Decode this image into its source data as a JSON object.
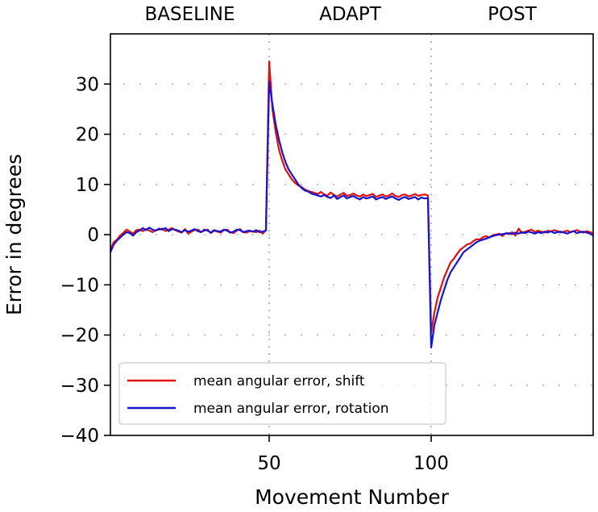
{
  "chart_data": {
    "type": "line",
    "title": "",
    "xlabel": "Movement Number",
    "ylabel": "Error in degrees",
    "xlim": [
      1,
      150
    ],
    "ylim": [
      -40,
      40
    ],
    "x_ticks": [
      50,
      100
    ],
    "y_ticks": [
      30,
      20,
      10,
      0,
      -10,
      -20,
      -30,
      -40
    ],
    "y_tick_labels": [
      "30",
      "20",
      "10",
      "0",
      "−10",
      "−20",
      "−30",
      "−40"
    ],
    "grid": true,
    "phase_boundaries": [
      50,
      100
    ],
    "phases": [
      {
        "label": "BASELINE",
        "start": 1,
        "end": 50
      },
      {
        "label": "ADAPT",
        "start": 50,
        "end": 100
      },
      {
        "label": "POST",
        "start": 100,
        "end": 150
      }
    ],
    "legend_position": "lower-left",
    "series": [
      {
        "name": "mean angular error, shift",
        "color": "#e01010",
        "x": [
          1,
          2,
          3,
          4,
          5,
          6,
          7,
          8,
          9,
          10,
          11,
          12,
          13,
          14,
          15,
          16,
          17,
          18,
          19,
          20,
          21,
          22,
          23,
          24,
          25,
          26,
          27,
          28,
          29,
          30,
          31,
          32,
          33,
          34,
          35,
          36,
          37,
          38,
          39,
          40,
          41,
          42,
          43,
          44,
          45,
          46,
          47,
          48,
          49,
          50,
          51,
          52,
          53,
          54,
          55,
          56,
          57,
          58,
          59,
          60,
          61,
          62,
          63,
          64,
          65,
          66,
          67,
          68,
          69,
          70,
          71,
          72,
          73,
          74,
          75,
          76,
          77,
          78,
          79,
          80,
          81,
          82,
          83,
          84,
          85,
          86,
          87,
          88,
          89,
          90,
          91,
          92,
          93,
          94,
          95,
          96,
          97,
          98,
          99,
          100,
          101,
          102,
          103,
          104,
          105,
          106,
          107,
          108,
          109,
          110,
          111,
          112,
          113,
          114,
          115,
          116,
          117,
          118,
          119,
          120,
          121,
          122,
          123,
          124,
          125,
          126,
          127,
          128,
          129,
          130,
          131,
          132,
          133,
          134,
          135,
          136,
          137,
          138,
          139,
          140,
          141,
          142,
          143,
          144,
          145,
          146,
          147,
          148,
          149,
          150
        ],
        "y": [
          -3.0,
          -1.5,
          -1.0,
          -0.2,
          0.4,
          1.0,
          0.6,
          0.2,
          0.9,
          1.0,
          0.7,
          1.1,
          0.8,
          0.5,
          0.9,
          1.0,
          1.2,
          0.7,
          1.0,
          1.3,
          0.9,
          0.6,
          0.4,
          1.1,
          0.2,
          0.6,
          0.9,
          1.0,
          0.5,
          0.8,
          1.0,
          0.3,
          0.8,
          0.6,
          0.4,
          0.9,
          1.0,
          0.5,
          0.3,
          0.8,
          1.1,
          0.5,
          0.4,
          0.7,
          0.6,
          0.5,
          0.8,
          0.2,
          0.9,
          34.5,
          25.0,
          20.5,
          17.0,
          14.8,
          13.0,
          12.0,
          11.0,
          10.3,
          9.8,
          9.5,
          9.0,
          8.7,
          8.5,
          8.3,
          8.1,
          8.5,
          8.0,
          7.8,
          8.4,
          7.9,
          7.6,
          8.0,
          8.3,
          7.7,
          7.9,
          8.2,
          7.8,
          7.6,
          8.0,
          7.7,
          7.9,
          8.1,
          7.5,
          7.8,
          8.0,
          7.6,
          7.8,
          8.2,
          7.7,
          7.5,
          7.9,
          8.0,
          7.6,
          7.8,
          8.1,
          7.7,
          7.9,
          8.0,
          7.8,
          -19.5,
          -15.5,
          -12.5,
          -10.5,
          -8.5,
          -7.0,
          -5.5,
          -4.8,
          -3.8,
          -3.0,
          -2.5,
          -2.0,
          -1.8,
          -1.3,
          -0.9,
          -1.0,
          -0.5,
          -0.3,
          -0.6,
          -0.1,
          0.0,
          0.2,
          -0.3,
          0.3,
          0.1,
          0.5,
          -0.2,
          1.2,
          0.3,
          0.6,
          0.8,
          1.0,
          0.5,
          0.8,
          0.6,
          0.4,
          0.8,
          0.6,
          0.9,
          0.7,
          0.4,
          0.6,
          0.8,
          0.5,
          0.7,
          0.9,
          0.6,
          0.4,
          0.7,
          0.5,
          0.3
        ]
      },
      {
        "name": "mean angular error, rotation",
        "color": "#1515d0",
        "x": [
          1,
          2,
          3,
          4,
          5,
          6,
          7,
          8,
          9,
          10,
          11,
          12,
          13,
          14,
          15,
          16,
          17,
          18,
          19,
          20,
          21,
          22,
          23,
          24,
          25,
          26,
          27,
          28,
          29,
          30,
          31,
          32,
          33,
          34,
          35,
          36,
          37,
          38,
          39,
          40,
          41,
          42,
          43,
          44,
          45,
          46,
          47,
          48,
          49,
          50,
          51,
          52,
          53,
          54,
          55,
          56,
          57,
          58,
          59,
          60,
          61,
          62,
          63,
          64,
          65,
          66,
          67,
          68,
          69,
          70,
          71,
          72,
          73,
          74,
          75,
          76,
          77,
          78,
          79,
          80,
          81,
          82,
          83,
          84,
          85,
          86,
          87,
          88,
          89,
          90,
          91,
          92,
          93,
          94,
          95,
          96,
          97,
          98,
          99,
          100,
          101,
          102,
          103,
          104,
          105,
          106,
          107,
          108,
          109,
          110,
          111,
          112,
          113,
          114,
          115,
          116,
          117,
          118,
          119,
          120,
          121,
          122,
          123,
          124,
          125,
          126,
          127,
          128,
          129,
          130,
          131,
          132,
          133,
          134,
          135,
          136,
          137,
          138,
          139,
          140,
          141,
          142,
          143,
          144,
          145,
          146,
          147,
          148,
          149,
          150
        ],
        "y": [
          -3.5,
          -2.0,
          -1.2,
          -0.6,
          0.0,
          0.5,
          0.3,
          -0.2,
          0.5,
          0.8,
          1.3,
          0.9,
          1.4,
          1.0,
          0.8,
          1.2,
          1.0,
          1.3,
          0.7,
          1.1,
          1.0,
          0.8,
          0.5,
          0.9,
          0.6,
          0.8,
          1.1,
          0.7,
          0.5,
          1.0,
          0.8,
          0.4,
          0.9,
          0.7,
          0.6,
          1.0,
          0.8,
          0.4,
          0.6,
          1.0,
          0.9,
          0.5,
          0.7,
          0.8,
          0.6,
          0.9,
          0.5,
          0.6,
          0.8,
          30.5,
          26.0,
          22.0,
          19.0,
          16.5,
          14.5,
          13.0,
          12.0,
          11.0,
          10.0,
          9.3,
          8.8,
          8.6,
          8.2,
          8.0,
          7.8,
          7.6,
          7.9,
          7.5,
          7.3,
          7.8,
          7.1,
          7.5,
          7.8,
          7.2,
          7.5,
          7.7,
          7.3,
          7.0,
          7.5,
          7.2,
          7.4,
          7.6,
          7.0,
          7.3,
          7.5,
          7.1,
          7.4,
          7.6,
          7.2,
          6.9,
          7.3,
          7.5,
          7.1,
          7.3,
          7.5,
          7.0,
          7.4,
          7.2,
          7.3,
          -22.5,
          -18.0,
          -15.5,
          -13.0,
          -11.0,
          -9.0,
          -7.5,
          -6.5,
          -5.5,
          -4.5,
          -3.5,
          -3.0,
          -2.5,
          -2.0,
          -1.5,
          -1.2,
          -1.0,
          -0.8,
          -0.5,
          -0.3,
          -0.1,
          0.0,
          0.1,
          0.2,
          0.3,
          0.1,
          0.4,
          0.2,
          0.5,
          0.3,
          0.6,
          0.4,
          0.2,
          0.5,
          0.3,
          0.6,
          0.4,
          0.7,
          0.3,
          0.5,
          0.6,
          0.4,
          0.2,
          0.5,
          0.7,
          0.3,
          0.5,
          0.6,
          0.4,
          0.2,
          -0.2
        ]
      }
    ]
  }
}
